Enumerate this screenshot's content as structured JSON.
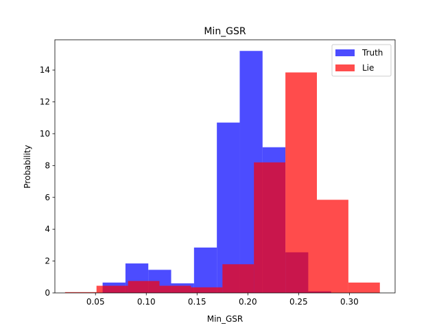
{
  "chart_data": {
    "type": "histogram",
    "title": "Min_GSR",
    "xlabel": "Min_GSR",
    "ylabel": "Probability",
    "xlim": [
      0.01,
      0.345
    ],
    "ylim": [
      0,
      15.9
    ],
    "xticks": [
      0.05,
      0.1,
      0.15,
      0.2,
      0.25,
      0.3
    ],
    "xtick_labels": [
      "0.05",
      "0.10",
      "0.15",
      "0.20",
      "0.25",
      "0.30"
    ],
    "yticks": [
      0,
      2,
      4,
      6,
      8,
      10,
      12,
      14
    ],
    "ytick_labels": [
      "0",
      "2",
      "4",
      "6",
      "8",
      "10",
      "12",
      "14"
    ],
    "legend_position": "top-right",
    "grid": false,
    "series": [
      {
        "name": "Truth",
        "color": "#0000ff",
        "opacity": 0.7,
        "bins": [
          [
            0.057,
            0.0795,
            0.65
          ],
          [
            0.0795,
            0.102,
            1.85
          ],
          [
            0.102,
            0.1245,
            1.45
          ],
          [
            0.1245,
            0.147,
            0.6
          ],
          [
            0.147,
            0.1695,
            2.85
          ],
          [
            0.1695,
            0.192,
            10.7
          ],
          [
            0.192,
            0.2145,
            15.2
          ],
          [
            0.2145,
            0.237,
            9.15
          ],
          [
            0.237,
            0.2595,
            2.55
          ],
          [
            0.2595,
            0.282,
            0.1
          ]
        ]
      },
      {
        "name": "Lie",
        "color": "#ff0000",
        "opacity": 0.7,
        "bins": [
          [
            0.02,
            0.051,
            0.05
          ],
          [
            0.051,
            0.082,
            0.45
          ],
          [
            0.082,
            0.113,
            0.75
          ],
          [
            0.113,
            0.144,
            0.45
          ],
          [
            0.144,
            0.175,
            0.35
          ],
          [
            0.175,
            0.206,
            1.8
          ],
          [
            0.206,
            0.237,
            8.2
          ],
          [
            0.237,
            0.268,
            13.85
          ],
          [
            0.268,
            0.299,
            5.85
          ],
          [
            0.299,
            0.33,
            0.65
          ]
        ]
      }
    ]
  }
}
